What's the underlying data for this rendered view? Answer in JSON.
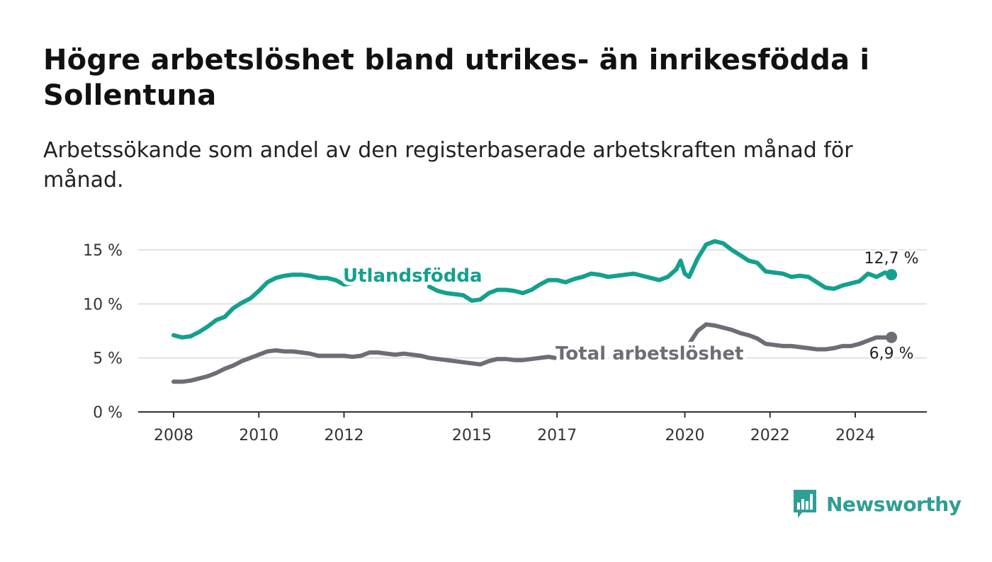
{
  "title": "Högre arbetslöshet bland utrikes- än inrikesfödda i Sollentuna",
  "subtitle": "Arbetssökande som andel av den registerbaserade arbetskraften månad för månad.",
  "brand": {
    "name": "Newsworthy",
    "color": "#2f9e95",
    "icon": "bar-chart-speech-bubble-icon"
  },
  "chart_data": {
    "type": "line",
    "ylim": [
      0,
      15
    ],
    "y_ticks": [
      0,
      5,
      10,
      15
    ],
    "y_tick_labels": [
      "0 %",
      "5 %",
      "10 %",
      "15 %"
    ],
    "x_ticks": [
      2008,
      2010,
      2012,
      2015,
      2017,
      2020,
      2022,
      2024
    ],
    "x_tick_labels": [
      "2008",
      "2010",
      "2012",
      "2015",
      "2017",
      "2020",
      "2022",
      "2024"
    ],
    "grid": true,
    "series": [
      {
        "name": "Utlandsfödda",
        "color": "#14a08e",
        "end_label": "12,7 %",
        "points": [
          [
            2008.0,
            7.1
          ],
          [
            2008.2,
            6.9
          ],
          [
            2008.4,
            7.0
          ],
          [
            2008.6,
            7.4
          ],
          [
            2008.8,
            7.9
          ],
          [
            2009.0,
            8.5
          ],
          [
            2009.2,
            8.8
          ],
          [
            2009.4,
            9.6
          ],
          [
            2009.6,
            10.1
          ],
          [
            2009.8,
            10.5
          ],
          [
            2010.0,
            11.2
          ],
          [
            2010.2,
            12.0
          ],
          [
            2010.4,
            12.4
          ],
          [
            2010.6,
            12.6
          ],
          [
            2010.8,
            12.7
          ],
          [
            2011.0,
            12.7
          ],
          [
            2011.2,
            12.6
          ],
          [
            2011.4,
            12.4
          ],
          [
            2011.6,
            12.4
          ],
          [
            2011.8,
            12.2
          ],
          [
            2012.0,
            11.8
          ],
          [
            2012.2,
            11.9
          ],
          [
            2014.0,
            11.6
          ],
          [
            2014.2,
            11.2
          ],
          [
            2014.4,
            11.0
          ],
          [
            2014.6,
            10.9
          ],
          [
            2014.8,
            10.8
          ],
          [
            2015.0,
            10.3
          ],
          [
            2015.2,
            10.4
          ],
          [
            2015.4,
            11.0
          ],
          [
            2015.6,
            11.3
          ],
          [
            2015.8,
            11.3
          ],
          [
            2016.0,
            11.2
          ],
          [
            2016.2,
            11.0
          ],
          [
            2016.4,
            11.3
          ],
          [
            2016.6,
            11.8
          ],
          [
            2016.8,
            12.2
          ],
          [
            2017.0,
            12.2
          ],
          [
            2017.2,
            12.0
          ],
          [
            2017.4,
            12.3
          ],
          [
            2017.6,
            12.5
          ],
          [
            2017.8,
            12.8
          ],
          [
            2018.0,
            12.7
          ],
          [
            2018.2,
            12.5
          ],
          [
            2018.4,
            12.6
          ],
          [
            2018.6,
            12.7
          ],
          [
            2018.8,
            12.8
          ],
          [
            2019.0,
            12.6
          ],
          [
            2019.2,
            12.4
          ],
          [
            2019.4,
            12.2
          ],
          [
            2019.6,
            12.5
          ],
          [
            2019.8,
            13.2
          ],
          [
            2019.9,
            14.0
          ],
          [
            2020.0,
            12.8
          ],
          [
            2020.1,
            12.5
          ],
          [
            2020.3,
            14.2
          ],
          [
            2020.5,
            15.5
          ],
          [
            2020.7,
            15.8
          ],
          [
            2020.9,
            15.6
          ],
          [
            2021.1,
            15.0
          ],
          [
            2021.3,
            14.5
          ],
          [
            2021.5,
            14.0
          ],
          [
            2021.7,
            13.8
          ],
          [
            2021.9,
            13.0
          ],
          [
            2022.1,
            12.9
          ],
          [
            2022.3,
            12.8
          ],
          [
            2022.5,
            12.5
          ],
          [
            2022.7,
            12.6
          ],
          [
            2022.9,
            12.5
          ],
          [
            2023.1,
            12.0
          ],
          [
            2023.3,
            11.5
          ],
          [
            2023.5,
            11.4
          ],
          [
            2023.7,
            11.7
          ],
          [
            2023.9,
            11.9
          ],
          [
            2024.1,
            12.1
          ],
          [
            2024.3,
            12.8
          ],
          [
            2024.5,
            12.5
          ],
          [
            2024.7,
            12.9
          ],
          [
            2024.85,
            12.7
          ]
        ]
      },
      {
        "name": "Total arbetslöshet",
        "color": "#6e6d75",
        "end_label": "6,9 %",
        "points": [
          [
            2008.0,
            2.8
          ],
          [
            2008.2,
            2.8
          ],
          [
            2008.4,
            2.9
          ],
          [
            2008.6,
            3.1
          ],
          [
            2008.8,
            3.3
          ],
          [
            2009.0,
            3.6
          ],
          [
            2009.2,
            4.0
          ],
          [
            2009.4,
            4.3
          ],
          [
            2009.6,
            4.7
          ],
          [
            2009.8,
            5.0
          ],
          [
            2010.0,
            5.3
          ],
          [
            2010.2,
            5.6
          ],
          [
            2010.4,
            5.7
          ],
          [
            2010.6,
            5.6
          ],
          [
            2010.8,
            5.6
          ],
          [
            2011.0,
            5.5
          ],
          [
            2011.2,
            5.4
          ],
          [
            2011.4,
            5.2
          ],
          [
            2011.6,
            5.2
          ],
          [
            2011.8,
            5.2
          ],
          [
            2012.0,
            5.2
          ],
          [
            2012.2,
            5.1
          ],
          [
            2012.4,
            5.2
          ],
          [
            2012.6,
            5.5
          ],
          [
            2012.8,
            5.5
          ],
          [
            2013.0,
            5.4
          ],
          [
            2013.2,
            5.3
          ],
          [
            2013.4,
            5.4
          ],
          [
            2013.6,
            5.3
          ],
          [
            2013.8,
            5.2
          ],
          [
            2014.0,
            5.0
          ],
          [
            2014.2,
            4.9
          ],
          [
            2014.4,
            4.8
          ],
          [
            2014.6,
            4.7
          ],
          [
            2014.8,
            4.6
          ],
          [
            2015.0,
            4.5
          ],
          [
            2015.2,
            4.4
          ],
          [
            2015.4,
            4.7
          ],
          [
            2015.6,
            4.9
          ],
          [
            2015.8,
            4.9
          ],
          [
            2016.0,
            4.8
          ],
          [
            2016.2,
            4.8
          ],
          [
            2016.4,
            4.9
          ],
          [
            2016.6,
            5.0
          ],
          [
            2016.8,
            5.1
          ],
          [
            2016.95,
            5.0
          ],
          [
            2020.1,
            6.3
          ],
          [
            2020.3,
            7.5
          ],
          [
            2020.5,
            8.1
          ],
          [
            2020.7,
            8.0
          ],
          [
            2020.9,
            7.8
          ],
          [
            2021.1,
            7.6
          ],
          [
            2021.3,
            7.3
          ],
          [
            2021.5,
            7.1
          ],
          [
            2021.7,
            6.8
          ],
          [
            2021.9,
            6.3
          ],
          [
            2022.1,
            6.2
          ],
          [
            2022.3,
            6.1
          ],
          [
            2022.5,
            6.1
          ],
          [
            2022.7,
            6.0
          ],
          [
            2022.9,
            5.9
          ],
          [
            2023.1,
            5.8
          ],
          [
            2023.3,
            5.8
          ],
          [
            2023.5,
            5.9
          ],
          [
            2023.7,
            6.1
          ],
          [
            2023.9,
            6.1
          ],
          [
            2024.1,
            6.3
          ],
          [
            2024.3,
            6.6
          ],
          [
            2024.5,
            6.9
          ],
          [
            2024.7,
            6.9
          ],
          [
            2024.85,
            6.9
          ]
        ]
      }
    ]
  }
}
